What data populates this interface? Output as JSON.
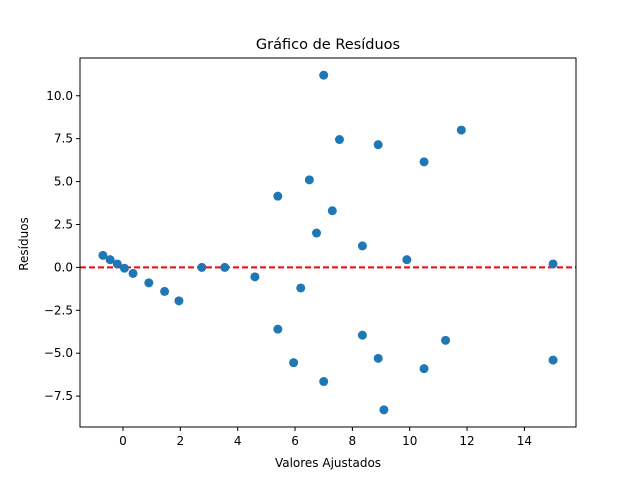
{
  "chart_data": {
    "type": "scatter",
    "title": "Gráfico de Resíduos",
    "xlabel": "Valores Ajustados",
    "ylabel": "Resíduos",
    "xlim": [
      -1.5,
      15.8
    ],
    "ylim": [
      -9.3,
      12.2
    ],
    "xticks": [
      0,
      2,
      4,
      6,
      8,
      10,
      12,
      14
    ],
    "xtick_labels": [
      "0",
      "2",
      "4",
      "6",
      "8",
      "10",
      "12",
      "14"
    ],
    "yticks": [
      -7.5,
      -5.0,
      -2.5,
      0.0,
      2.5,
      5.0,
      7.5,
      10.0
    ],
    "ytick_labels": [
      "−7.5",
      "−5.0",
      "−2.5",
      "0.0",
      "2.5",
      "5.0",
      "7.5",
      "10.0"
    ],
    "grid": false,
    "reference_line": {
      "y": 0,
      "style": "dashed",
      "color": "#ff0000"
    },
    "marker_color": "#1f77b4",
    "points": [
      {
        "x": -0.7,
        "y": 0.7
      },
      {
        "x": -0.45,
        "y": 0.45
      },
      {
        "x": -0.2,
        "y": 0.2
      },
      {
        "x": 0.05,
        "y": -0.05
      },
      {
        "x": 0.35,
        "y": -0.35
      },
      {
        "x": 0.9,
        "y": -0.9
      },
      {
        "x": 1.45,
        "y": -1.4
      },
      {
        "x": 1.95,
        "y": -1.95
      },
      {
        "x": 2.75,
        "y": 0.0
      },
      {
        "x": 3.55,
        "y": 0.0
      },
      {
        "x": 4.6,
        "y": -0.55
      },
      {
        "x": 5.4,
        "y": 4.15
      },
      {
        "x": 5.4,
        "y": -3.6
      },
      {
        "x": 5.95,
        "y": -5.55
      },
      {
        "x": 6.2,
        "y": -1.2
      },
      {
        "x": 6.5,
        "y": 5.1
      },
      {
        "x": 6.75,
        "y": 2.0
      },
      {
        "x": 7.0,
        "y": 11.2
      },
      {
        "x": 7.0,
        "y": -6.65
      },
      {
        "x": 7.3,
        "y": 3.3
      },
      {
        "x": 7.55,
        "y": 7.45
      },
      {
        "x": 8.35,
        "y": 1.25
      },
      {
        "x": 8.35,
        "y": -3.95
      },
      {
        "x": 8.9,
        "y": 7.15
      },
      {
        "x": 8.9,
        "y": -5.3
      },
      {
        "x": 9.1,
        "y": -8.3
      },
      {
        "x": 9.9,
        "y": 0.45
      },
      {
        "x": 10.5,
        "y": 6.15
      },
      {
        "x": 10.5,
        "y": -5.9
      },
      {
        "x": 11.25,
        "y": -4.25
      },
      {
        "x": 11.8,
        "y": 8.0
      },
      {
        "x": 15.0,
        "y": 0.2
      },
      {
        "x": 15.0,
        "y": -5.4
      }
    ]
  }
}
